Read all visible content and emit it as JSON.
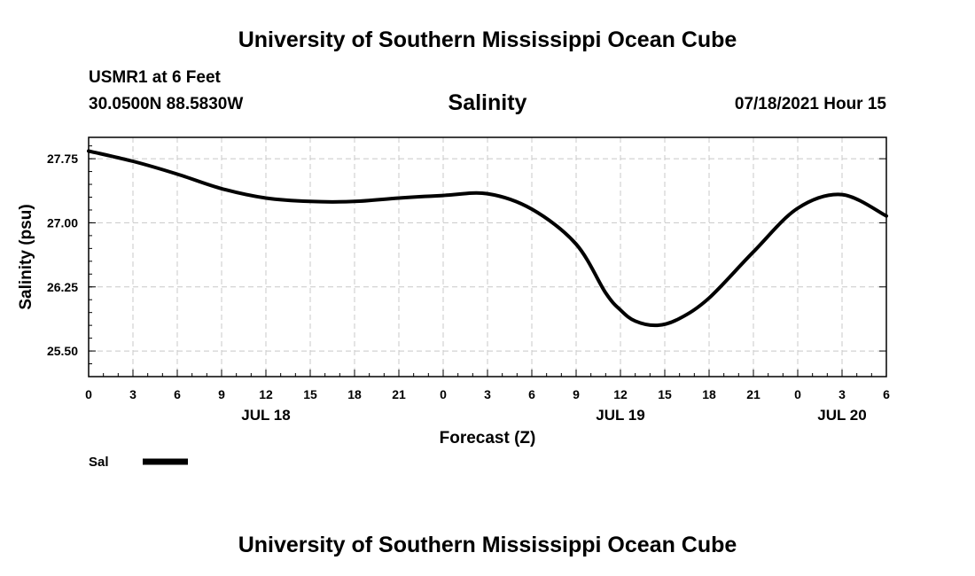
{
  "header": {
    "title": "University of Southern Mississippi Ocean Cube",
    "station": "USMR1 at 6 Feet",
    "coords": "30.0500N  88.5830W",
    "datetime": "07/18/2021 Hour 15"
  },
  "footer": {
    "title": "University of Southern Mississippi Ocean Cube"
  },
  "chart_data": {
    "type": "line",
    "title": "Salinity",
    "xlabel": "Forecast (Z)",
    "ylabel": "Salinity (psu)",
    "xlim": [
      0,
      54
    ],
    "ylim": [
      25.2,
      28.0
    ],
    "yticks": [
      25.5,
      26.25,
      27.0,
      27.75
    ],
    "ytick_labels": [
      "25.50",
      "26.25",
      "27.00",
      "27.75"
    ],
    "xticks": [
      0,
      3,
      6,
      9,
      12,
      15,
      18,
      21,
      24,
      27,
      30,
      33,
      36,
      39,
      42,
      45,
      48,
      51,
      54
    ],
    "xtick_labels": [
      "0",
      "3",
      "6",
      "9",
      "12",
      "15",
      "18",
      "21",
      "0",
      "3",
      "6",
      "9",
      "12",
      "15",
      "18",
      "21",
      "0",
      "3",
      "6"
    ],
    "day_labels": [
      {
        "x": 12,
        "label": "JUL 18"
      },
      {
        "x": 36,
        "label": "JUL 19"
      },
      {
        "x": 51,
        "label": "JUL 20"
      }
    ],
    "grid": true,
    "legend": [
      {
        "name": "Sal",
        "color": "#000000"
      }
    ],
    "series": [
      {
        "name": "Sal",
        "color": "#000000",
        "x": [
          0,
          3,
          6,
          9,
          12,
          15,
          18,
          21,
          24,
          27,
          30,
          33,
          35,
          36,
          37,
          38.5,
          40,
          42,
          45,
          48,
          51,
          54
        ],
        "values": [
          27.84,
          27.72,
          27.57,
          27.4,
          27.29,
          27.25,
          27.25,
          27.29,
          27.32,
          27.34,
          27.16,
          26.75,
          26.18,
          25.98,
          25.85,
          25.8,
          25.88,
          26.12,
          26.66,
          27.17,
          27.33,
          27.08
        ]
      }
    ]
  }
}
